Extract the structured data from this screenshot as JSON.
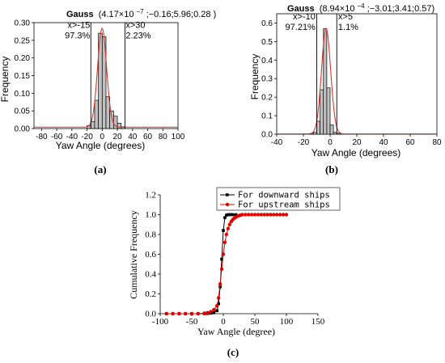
{
  "chart_data": [
    {
      "id": "a",
      "type": "bar",
      "panel_label": "(a)",
      "title_fit": "Gauss",
      "title_params": "(4.17×10",
      "title_exp": "−7",
      "title_rest": ";−0.16;5.96;0.28 )",
      "xlabel": "Yaw Angle (degrees)",
      "ylabel": "Frequency",
      "xlim": [
        -90,
        100
      ],
      "ylim": [
        0,
        0.3
      ],
      "xticks": [
        -80,
        -60,
        -40,
        -20,
        0,
        20,
        40,
        60,
        80,
        100
      ],
      "yticks": [
        0.0,
        0.05,
        0.1,
        0.15,
        0.2,
        0.25,
        0.3
      ],
      "ytick_labels": [
        "0.00",
        "0.05",
        "0.10",
        "0.15",
        "0.20",
        "0.25",
        "0.30"
      ],
      "bin_width": 5,
      "bin_centers": [
        -17.5,
        -12.5,
        -7.5,
        -2.5,
        2.5,
        7.5,
        12.5,
        17.5,
        22.5,
        27.5
      ],
      "values": [
        0.008,
        0.02,
        0.08,
        0.27,
        0.26,
        0.09,
        0.05,
        0.035,
        0.015,
        0.005
      ],
      "fit": {
        "amplitude": 0.28,
        "center": -0.16,
        "width": 5.96,
        "baseline": 0.004
      },
      "vlines": [
        -15,
        30
      ],
      "annotations": [
        {
          "line1": "x>-15",
          "line2": "97.3%",
          "x": -16,
          "y": 0.285,
          "anchor": "end"
        },
        {
          "line1": "x>30",
          "line2": "2.23%",
          "x": 31,
          "y": 0.285,
          "anchor": "start"
        }
      ],
      "bar_color": "#c0c0c0",
      "fit_color": "#d43a2f"
    },
    {
      "id": "b",
      "type": "bar",
      "panel_label": "(b)",
      "title_fit": "Gauss",
      "title_params": "(8.94×10",
      "title_exp": "−4",
      "title_rest": ";−3.01;3.41;0.57)",
      "xlabel": "Yaw Angle (degrees)",
      "ylabel": "Frequency",
      "xlim": [
        -40,
        80
      ],
      "ylim": [
        0,
        0.65
      ],
      "xticks": [
        -40,
        -20,
        0,
        20,
        40,
        60,
        80
      ],
      "yticks": [
        0.0,
        0.1,
        0.2,
        0.3,
        0.4,
        0.5,
        0.6
      ],
      "ytick_labels": [
        "0.0",
        "0.1",
        "0.2",
        "0.3",
        "0.4",
        "0.5",
        "0.6"
      ],
      "bin_width": 2.5,
      "bin_centers": [
        -13.75,
        -11.25,
        -8.75,
        -6.25,
        -3.75,
        -1.25,
        1.25,
        3.75,
        6.25
      ],
      "values": [
        0.005,
        0.01,
        0.07,
        0.24,
        0.57,
        0.25,
        0.05,
        0.01,
        0.005
      ],
      "fit": {
        "amplitude": 0.57,
        "center": -3.01,
        "width": 3.41,
        "baseline": 0.002
      },
      "vlines": [
        -10,
        5
      ],
      "annotations": [
        {
          "line1": "x>-10",
          "line2": "97.21%",
          "x": -11,
          "y": 0.62,
          "anchor": "end"
        },
        {
          "line1": "x>5",
          "line2": "1.1%",
          "x": 6,
          "y": 0.62,
          "anchor": "start"
        }
      ],
      "bar_color": "#c0c0c0",
      "fit_color": "#d43a2f"
    },
    {
      "id": "c",
      "type": "line",
      "panel_label": "(c)",
      "xlabel": "Yaw Angle (degree)",
      "ylabel": "Cumulative Frequency",
      "xlim": [
        -100,
        150
      ],
      "ylim": [
        0,
        1.2
      ],
      "xticks": [
        -100,
        -50,
        0,
        50,
        100,
        150
      ],
      "yticks": [
        0.0,
        0.2,
        0.4,
        0.6,
        0.8,
        1.0,
        1.2
      ],
      "ytick_labels": [
        "0.0",
        "0.2",
        "0.4",
        "0.6",
        "0.8",
        "1.0",
        "1.2"
      ],
      "legend_position": "top-right",
      "series": [
        {
          "name": "For downward ships",
          "color": "#000000",
          "marker": "square",
          "x": [
            -90,
            -80,
            -70,
            -60,
            -50,
            -40,
            -30,
            -25,
            -20,
            -15,
            -10,
            -7.5,
            -5,
            -2.5,
            0,
            2.5,
            5,
            7.5,
            10,
            12.5,
            15,
            20
          ],
          "y": [
            0,
            0,
            0,
            0,
            0,
            0,
            0,
            0.002,
            0.005,
            0.01,
            0.03,
            0.1,
            0.27,
            0.55,
            0.84,
            0.97,
            0.995,
            1.0,
            1.0,
            1.0,
            1.0,
            1.0
          ]
        },
        {
          "name": "For upstream ships",
          "color": "#e00000",
          "marker": "circle",
          "x": [
            -90,
            -80,
            -70,
            -60,
            -50,
            -40,
            -30,
            -25,
            -20,
            -15,
            -10,
            -7.5,
            -5,
            -2.5,
            0,
            2.5,
            5,
            7.5,
            10,
            12.5,
            15,
            17.5,
            20,
            22.5,
            25,
            27.5,
            30,
            35,
            40,
            45,
            50,
            55,
            60,
            65,
            70,
            75,
            80,
            85,
            90,
            95,
            100
          ],
          "y": [
            0,
            0,
            0,
            0,
            0,
            0,
            0.005,
            0.01,
            0.02,
            0.04,
            0.08,
            0.16,
            0.3,
            0.45,
            0.6,
            0.72,
            0.8,
            0.86,
            0.9,
            0.93,
            0.95,
            0.965,
            0.975,
            0.985,
            0.99,
            0.995,
            1.0,
            1.0,
            1.0,
            1.0,
            1.0,
            1.0,
            1.0,
            1.0,
            1.0,
            1.0,
            1.0,
            1.0,
            1.0,
            1.0,
            1.0
          ]
        }
      ]
    }
  ]
}
